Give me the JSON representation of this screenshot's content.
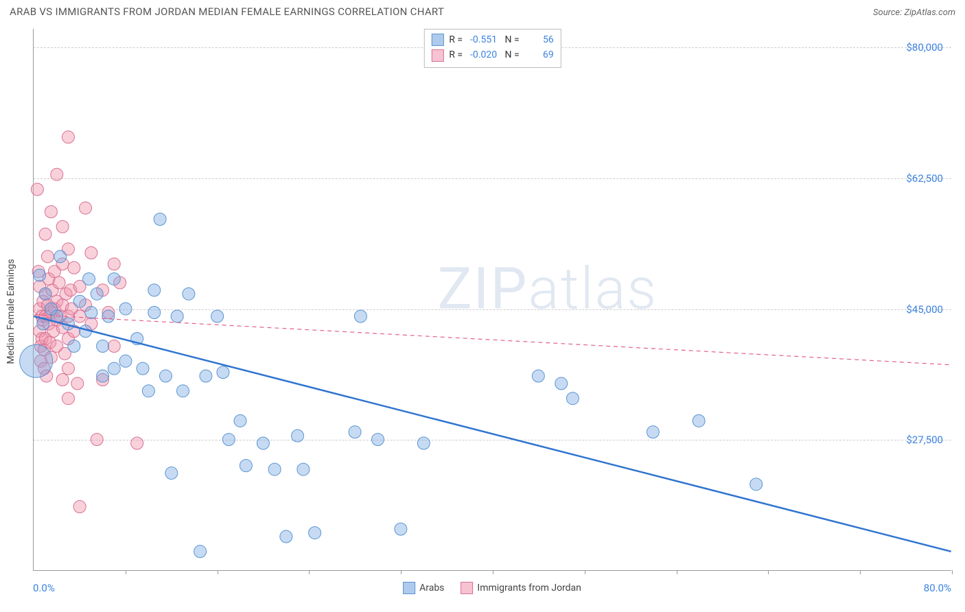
{
  "title": "ARAB VS IMMIGRANTS FROM JORDAN MEDIAN FEMALE EARNINGS CORRELATION CHART",
  "source_label": "Source: ",
  "source_name": "ZipAtlas.com",
  "watermark_strong": "ZIP",
  "watermark_thin": "atlas",
  "ylabel": "Median Female Earnings",
  "chart": {
    "type": "scatter",
    "background_color": "#ffffff",
    "grid_color": "#cccccc",
    "axis_color": "#999999",
    "xlim": [
      0,
      80
    ],
    "ylim": [
      10000,
      82500
    ],
    "x_min_label": "0.0%",
    "x_max_label": "80.0%",
    "x_tick_positions": [
      8,
      16,
      24,
      32,
      40,
      48,
      56,
      64,
      72,
      80
    ],
    "y_grid": [
      {
        "value": 27500,
        "label": "$27,500"
      },
      {
        "value": 45000,
        "label": "$45,000"
      },
      {
        "value": 62500,
        "label": "$62,500"
      },
      {
        "value": 80000,
        "label": "$80,000"
      }
    ],
    "marker_radius": 9,
    "marker_stroke_width": 1,
    "trend_line_width_blue": 2.5,
    "trend_line_width_pink": 1.2,
    "trend_dash_pink": "6,5",
    "series": [
      {
        "key": "arabs",
        "label": "Arabs",
        "fill": "rgba(120,169,226,0.42)",
        "stroke": "#5a93d1",
        "swatch_fill": "#aecbed",
        "swatch_border": "#5a93d1",
        "line_color": "#2f74d0",
        "R": "-0.551",
        "N": "56",
        "trend": {
          "x1": 0,
          "y1": 44000,
          "x2": 80,
          "y2": 12500,
          "dashed": false
        },
        "points": [
          {
            "x": 0.2,
            "y": 38000,
            "r": 24
          },
          {
            "x": 0.5,
            "y": 49500
          },
          {
            "x": 0.8,
            "y": 43000
          },
          {
            "x": 1.0,
            "y": 47000
          },
          {
            "x": 1.5,
            "y": 45000
          },
          {
            "x": 2.0,
            "y": 44000
          },
          {
            "x": 2.3,
            "y": 52000
          },
          {
            "x": 3.0,
            "y": 43000
          },
          {
            "x": 3.5,
            "y": 40000
          },
          {
            "x": 4.0,
            "y": 46000
          },
          {
            "x": 4.5,
            "y": 42000
          },
          {
            "x": 4.8,
            "y": 49000
          },
          {
            "x": 5.0,
            "y": 44500
          },
          {
            "x": 5.5,
            "y": 47000
          },
          {
            "x": 6.0,
            "y": 40000
          },
          {
            "x": 6.0,
            "y": 36000
          },
          {
            "x": 6.5,
            "y": 44000
          },
          {
            "x": 7.0,
            "y": 49000
          },
          {
            "x": 7.0,
            "y": 37000
          },
          {
            "x": 8.0,
            "y": 45000
          },
          {
            "x": 8.0,
            "y": 38000
          },
          {
            "x": 9.0,
            "y": 41000
          },
          {
            "x": 9.5,
            "y": 37000
          },
          {
            "x": 10.0,
            "y": 34000
          },
          {
            "x": 10.5,
            "y": 47500
          },
          {
            "x": 10.5,
            "y": 44500
          },
          {
            "x": 11.0,
            "y": 57000
          },
          {
            "x": 11.5,
            "y": 36000
          },
          {
            "x": 12.0,
            "y": 23000
          },
          {
            "x": 12.5,
            "y": 44000
          },
          {
            "x": 13.0,
            "y": 34000
          },
          {
            "x": 13.5,
            "y": 47000
          },
          {
            "x": 14.5,
            "y": 12500
          },
          {
            "x": 15.0,
            "y": 36000
          },
          {
            "x": 16.0,
            "y": 44000
          },
          {
            "x": 16.5,
            "y": 36500
          },
          {
            "x": 17.0,
            "y": 27500
          },
          {
            "x": 18.0,
            "y": 30000
          },
          {
            "x": 18.5,
            "y": 24000
          },
          {
            "x": 20.0,
            "y": 27000
          },
          {
            "x": 21.0,
            "y": 23500
          },
          {
            "x": 22.0,
            "y": 14500
          },
          {
            "x": 23.0,
            "y": 28000
          },
          {
            "x": 23.5,
            "y": 23500
          },
          {
            "x": 24.5,
            "y": 15000
          },
          {
            "x": 28.0,
            "y": 28500
          },
          {
            "x": 28.5,
            "y": 44000
          },
          {
            "x": 30.0,
            "y": 27500
          },
          {
            "x": 32.0,
            "y": 15500
          },
          {
            "x": 34.0,
            "y": 27000
          },
          {
            "x": 44.0,
            "y": 36000
          },
          {
            "x": 46.0,
            "y": 35000
          },
          {
            "x": 47.0,
            "y": 33000
          },
          {
            "x": 54.0,
            "y": 28500
          },
          {
            "x": 58.0,
            "y": 30000
          },
          {
            "x": 63.0,
            "y": 21500
          }
        ]
      },
      {
        "key": "jordan",
        "label": "Immigrants from Jordan",
        "fill": "rgba(240,145,170,0.42)",
        "stroke": "#d86f93",
        "swatch_fill": "#f7c3d2",
        "swatch_border": "#d86f93",
        "line_color": "#e45f8a",
        "R": "-0.020",
        "N": "69",
        "trend": {
          "x1": 0,
          "y1": 44200,
          "x2": 80,
          "y2": 37500,
          "dashed": true
        },
        "points": [
          {
            "x": 0.3,
            "y": 61000
          },
          {
            "x": 0.4,
            "y": 50000
          },
          {
            "x": 0.5,
            "y": 48000
          },
          {
            "x": 0.5,
            "y": 45000
          },
          {
            "x": 0.5,
            "y": 42000
          },
          {
            "x": 0.6,
            "y": 40000
          },
          {
            "x": 0.6,
            "y": 38000
          },
          {
            "x": 0.7,
            "y": 44000
          },
          {
            "x": 0.7,
            "y": 41000
          },
          {
            "x": 0.8,
            "y": 46000
          },
          {
            "x": 0.8,
            "y": 43500
          },
          {
            "x": 0.9,
            "y": 39500
          },
          {
            "x": 0.9,
            "y": 37000
          },
          {
            "x": 1.0,
            "y": 55000
          },
          {
            "x": 1.0,
            "y": 47000
          },
          {
            "x": 1.0,
            "y": 44000
          },
          {
            "x": 1.0,
            "y": 41000
          },
          {
            "x": 1.1,
            "y": 36000
          },
          {
            "x": 1.2,
            "y": 52000
          },
          {
            "x": 1.2,
            "y": 45500
          },
          {
            "x": 1.3,
            "y": 43000
          },
          {
            "x": 1.3,
            "y": 49000
          },
          {
            "x": 1.4,
            "y": 40500
          },
          {
            "x": 1.5,
            "y": 58000
          },
          {
            "x": 1.5,
            "y": 44500
          },
          {
            "x": 1.5,
            "y": 38500
          },
          {
            "x": 1.6,
            "y": 47500
          },
          {
            "x": 1.7,
            "y": 42000
          },
          {
            "x": 1.8,
            "y": 45000
          },
          {
            "x": 1.8,
            "y": 50000
          },
          {
            "x": 2.0,
            "y": 63000
          },
          {
            "x": 2.0,
            "y": 46000
          },
          {
            "x": 2.0,
            "y": 43500
          },
          {
            "x": 2.0,
            "y": 40000
          },
          {
            "x": 2.2,
            "y": 48500
          },
          {
            "x": 2.3,
            "y": 44000
          },
          {
            "x": 2.5,
            "y": 56000
          },
          {
            "x": 2.5,
            "y": 51000
          },
          {
            "x": 2.5,
            "y": 45500
          },
          {
            "x": 2.5,
            "y": 42500
          },
          {
            "x": 2.5,
            "y": 35500
          },
          {
            "x": 2.7,
            "y": 39000
          },
          {
            "x": 2.8,
            "y": 47000
          },
          {
            "x": 3.0,
            "y": 68000
          },
          {
            "x": 3.0,
            "y": 53000
          },
          {
            "x": 3.0,
            "y": 44000
          },
          {
            "x": 3.0,
            "y": 41000
          },
          {
            "x": 3.0,
            "y": 37000
          },
          {
            "x": 3.0,
            "y": 33000
          },
          {
            "x": 3.2,
            "y": 47500
          },
          {
            "x": 3.3,
            "y": 45000
          },
          {
            "x": 3.5,
            "y": 50500
          },
          {
            "x": 3.5,
            "y": 42000
          },
          {
            "x": 3.8,
            "y": 35000
          },
          {
            "x": 4.0,
            "y": 48000
          },
          {
            "x": 4.0,
            "y": 44000
          },
          {
            "x": 4.0,
            "y": 18500
          },
          {
            "x": 4.5,
            "y": 58500
          },
          {
            "x": 4.5,
            "y": 45500
          },
          {
            "x": 5.0,
            "y": 52500
          },
          {
            "x": 5.0,
            "y": 43000
          },
          {
            "x": 5.5,
            "y": 27500
          },
          {
            "x": 6.0,
            "y": 47500
          },
          {
            "x": 6.0,
            "y": 35500
          },
          {
            "x": 6.5,
            "y": 44500
          },
          {
            "x": 7.0,
            "y": 51000
          },
          {
            "x": 7.0,
            "y": 40000
          },
          {
            "x": 7.5,
            "y": 48500
          },
          {
            "x": 9.0,
            "y": 27000
          }
        ]
      }
    ],
    "bottom_legend": [
      {
        "key": "arabs"
      },
      {
        "key": "jordan"
      }
    ]
  }
}
